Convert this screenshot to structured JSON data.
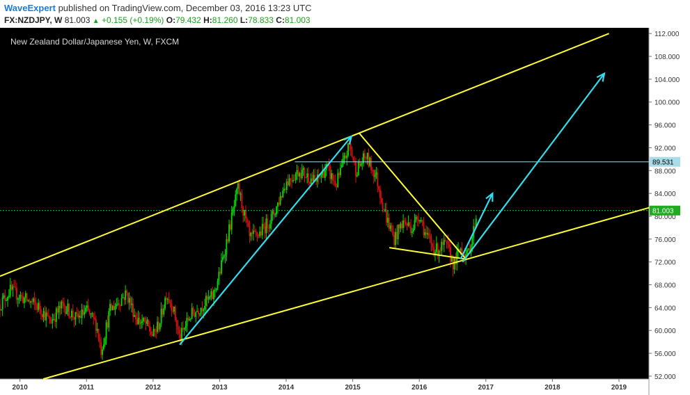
{
  "header": {
    "publisher": "WaveExpert",
    "published_text": "published on TradingView.com, December 03, 2016 13:23 UTC",
    "symbol": "FX:NZDJPY, W",
    "last": "81.003",
    "change": "+0.155 (+0.19%)",
    "open_label": "O:",
    "open": "79.432",
    "high_label": "H:",
    "high": "81.260",
    "low_label": "L:",
    "low": "78.833",
    "close_label": "C:",
    "close": "81.003"
  },
  "colors": {
    "background": "#000000",
    "up_candle": "#00e000",
    "down_candle": "#e01010",
    "channel": "#ffff33",
    "arrows": "#33ddee",
    "resistance": "#a8dce8",
    "current_price": "#22cc22"
  },
  "chart_data": {
    "type": "candlestick",
    "title": "New Zealand Dollar/Japanese Yen, W, FXCM",
    "x_ticks": [
      "2010",
      "2011",
      "2012",
      "2013",
      "2014",
      "2015",
      "2016",
      "2017",
      "2018",
      "2019"
    ],
    "y_ticks": [
      "112.000",
      "108.000",
      "104.000",
      "100.000",
      "96.000",
      "92.000",
      "88.000",
      "84.000",
      "80.000",
      "76.000",
      "72.000",
      "68.000",
      "64.000",
      "60.000",
      "56.000",
      "52.000"
    ],
    "xlim": [
      2009.7,
      2019.45
    ],
    "ylim": [
      51.5,
      113.0
    ],
    "price_path": [
      [
        2009.7,
        64.5
      ],
      [
        2009.85,
        67.0
      ],
      [
        2010.0,
        66.0
      ],
      [
        2010.3,
        64.0
      ],
      [
        2010.45,
        61.5
      ],
      [
        2010.65,
        64.5
      ],
      [
        2010.85,
        62.0
      ],
      [
        2011.0,
        63.5
      ],
      [
        2011.15,
        61.0
      ],
      [
        2011.22,
        56.5
      ],
      [
        2011.35,
        63.5
      ],
      [
        2011.6,
        66.5
      ],
      [
        2011.75,
        62.0
      ],
      [
        2011.9,
        61.0
      ],
      [
        2012.0,
        59.0
      ],
      [
        2012.1,
        61.5
      ],
      [
        2012.2,
        66.5
      ],
      [
        2012.3,
        64.0
      ],
      [
        2012.4,
        58.5
      ],
      [
        2012.55,
        62.5
      ],
      [
        2012.75,
        64.5
      ],
      [
        2012.9,
        66.0
      ],
      [
        2013.0,
        70.0
      ],
      [
        2013.15,
        78.0
      ],
      [
        2013.28,
        85.0
      ],
      [
        2013.45,
        76.0
      ],
      [
        2013.6,
        77.0
      ],
      [
        2013.8,
        80.0
      ],
      [
        2014.0,
        86.0
      ],
      [
        2014.2,
        88.0
      ],
      [
        2014.45,
        86.0
      ],
      [
        2014.6,
        88.5
      ],
      [
        2014.75,
        85.5
      ],
      [
        2014.95,
        92.5
      ],
      [
        2015.05,
        88.0
      ],
      [
        2015.2,
        90.5
      ],
      [
        2015.35,
        87.0
      ],
      [
        2015.5,
        80.0
      ],
      [
        2015.62,
        76.0
      ],
      [
        2015.75,
        79.0
      ],
      [
        2015.9,
        78.0
      ],
      [
        2016.0,
        80.5
      ],
      [
        2016.1,
        76.5
      ],
      [
        2016.25,
        74.0
      ],
      [
        2016.4,
        75.0
      ],
      [
        2016.52,
        71.5
      ],
      [
        2016.62,
        74.5
      ],
      [
        2016.72,
        73.0
      ],
      [
        2016.8,
        76.5
      ],
      [
        2016.87,
        81.0
      ]
    ],
    "last_price": 81.003,
    "resistance_price": 89.531,
    "resistance_label": "89.531",
    "current_price_label": "81.003",
    "channel_lines": [
      {
        "from": [
          2009.7,
          69.5
        ],
        "to": [
          2018.85,
          112.0
        ]
      },
      {
        "from": [
          2010.35,
          51.5
        ],
        "to": [
          2019.45,
          81.5
        ]
      }
    ],
    "wedge_lines": [
      {
        "from": [
          2015.1,
          94.5
        ],
        "to": [
          2016.7,
          72.5
        ]
      },
      {
        "from": [
          2015.55,
          74.5
        ],
        "to": [
          2016.7,
          72.5
        ]
      }
    ],
    "arrows": [
      {
        "from": [
          2012.4,
          57.5
        ],
        "to": [
          2014.98,
          94.0
        ]
      },
      {
        "from": [
          2016.62,
          72.5
        ],
        "to": [
          2017.1,
          84.0
        ]
      },
      {
        "from": [
          2016.65,
          72.0
        ],
        "to": [
          2018.78,
          105.0
        ]
      }
    ]
  }
}
